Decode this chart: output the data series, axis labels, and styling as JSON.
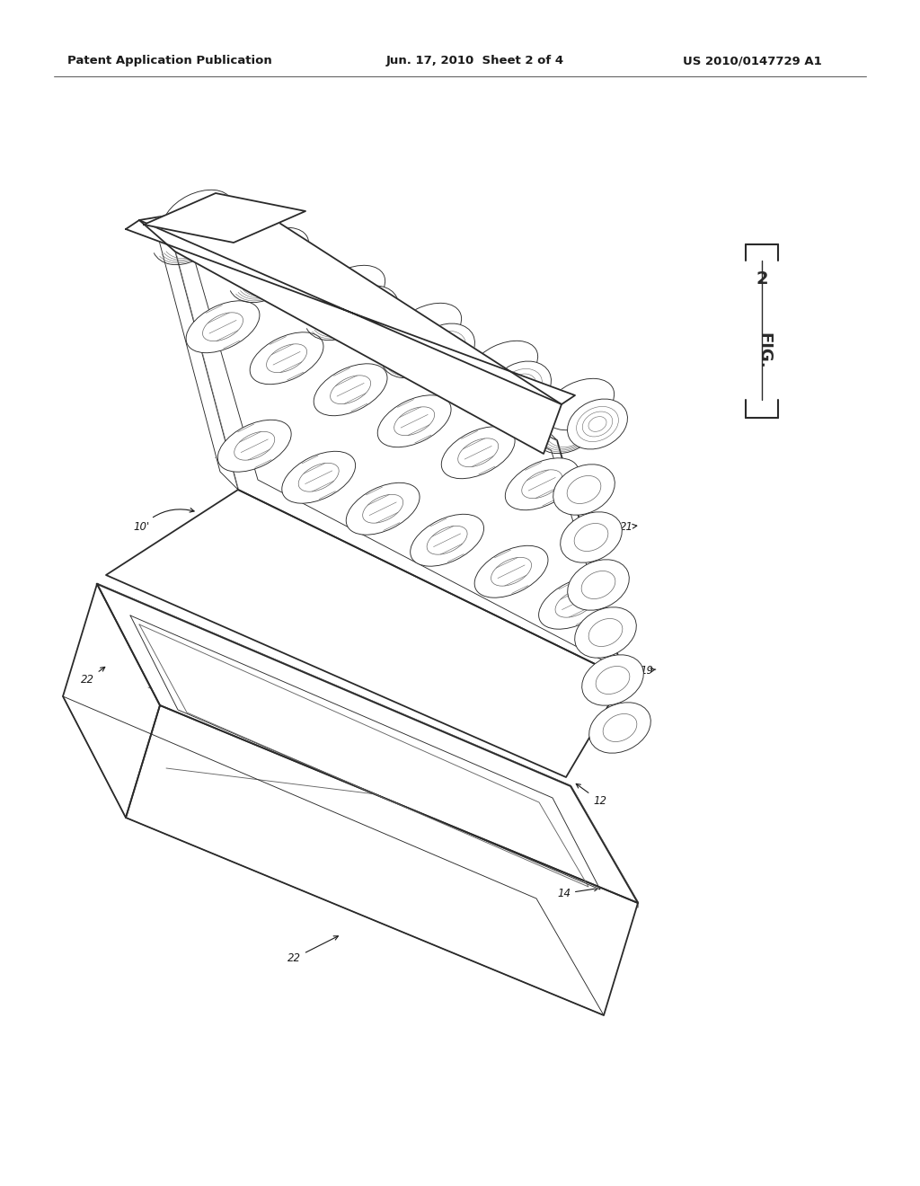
{
  "background_color": "#ffffff",
  "header_text_left": "Patent Application Publication",
  "header_text_center": "Jun. 17, 2010  Sheet 2 of 4",
  "header_text_right": "US 2010/0147729 A1",
  "fig_label": "FIG. 2",
  "header_font_size": 9.5,
  "label_font_size": 8.5,
  "line_color": "#2a2a2a",
  "light_line_color": "#666666",
  "lw_main": 1.3,
  "lw_thin": 0.65,
  "lw_thick": 1.8
}
